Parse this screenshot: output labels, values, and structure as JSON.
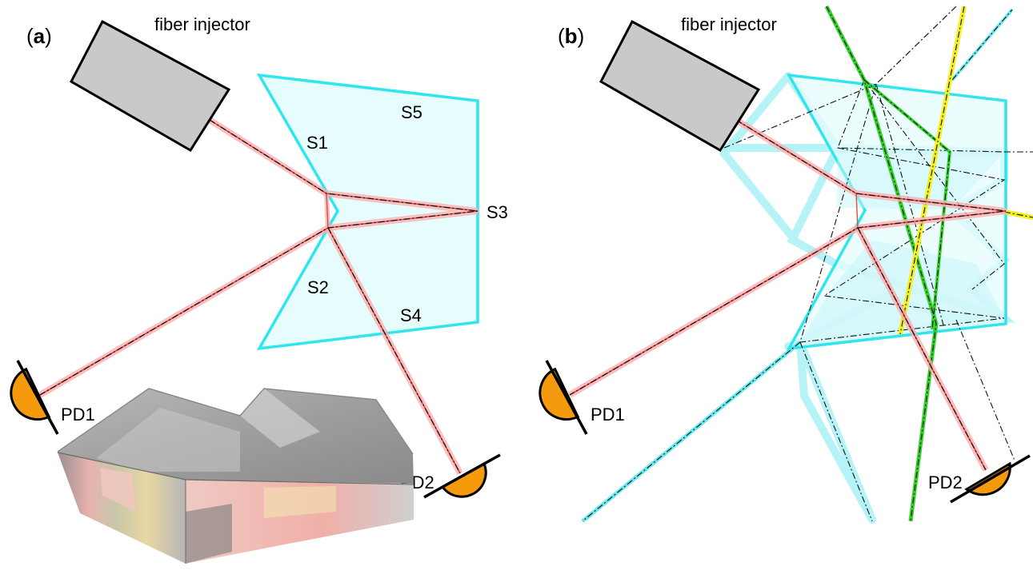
{
  "panels": [
    {
      "id": "a",
      "label_open": "(",
      "label_letter": "a",
      "label_close": ")",
      "injector_label": "fiber injector",
      "surface_labels": [
        "S1",
        "S2",
        "S3",
        "S4",
        "S5"
      ],
      "detector_labels": [
        "PD1",
        "PD2"
      ]
    },
    {
      "id": "b",
      "label_open": "(",
      "label_letter": "b",
      "label_close": ")",
      "injector_label": "fiber injector",
      "detector_labels": [
        "PD1",
        "PD2"
      ]
    }
  ],
  "colors": {
    "prism_stroke": "#2fe6ee",
    "prism_fill": "#e6fcfd",
    "beam_main": "#f06a6a",
    "beam_glow": "#f7b0b0",
    "beam_cyan": "#3fe3ec",
    "beam_green": "#35d12a",
    "beam_yellow": "#f4f01c",
    "detector_fill": "#f59a0c",
    "injector_fill": "#c9c9c9"
  }
}
